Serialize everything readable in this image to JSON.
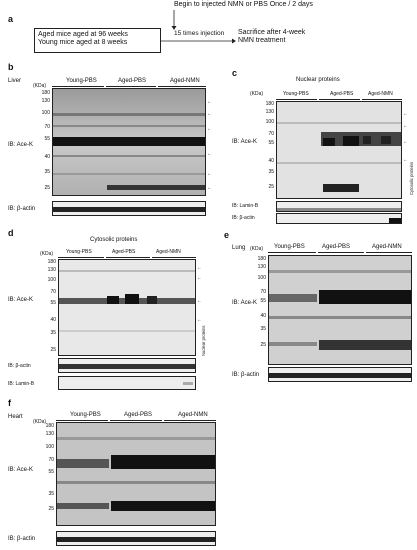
{
  "panel_a": {
    "label": "a",
    "top_text": "Begin to injected NMN or PBS Once / 2 days",
    "left_box": [
      "Aged mice aged at 96 weeks",
      "Young mice aged at 8 weeks"
    ],
    "injection": "15 times injection",
    "right_box": [
      "Sacrifice after 4-week",
      "NMN treatment"
    ]
  },
  "panel_b": {
    "label": "b",
    "tissue": "Liver",
    "groups": [
      "Young-PBS",
      "Aged-PBS",
      "Aged-NMN"
    ],
    "kda_label": "(KDa)",
    "markers": [
      "180",
      "130",
      "100",
      "70",
      "55",
      "40",
      "35",
      "25"
    ],
    "ib_main": "IB: Ace-K",
    "ib_loading": "IB: β-actin"
  },
  "panel_c": {
    "label": "c",
    "title": "Nuclear proteins",
    "groups": [
      "Young-PBS",
      "Aged-PBS",
      "Aged-NMN"
    ],
    "kda_label": "(KDa)",
    "markers": [
      "180",
      "130",
      "100",
      "70",
      "55",
      "40",
      "35",
      "25"
    ],
    "side_label": "Cytosolic proteins",
    "ib_main": "IB: Ace-K",
    "ib_lamin": "IB: Lamin-B",
    "ib_loading": "IB: β-actin"
  },
  "panel_d": {
    "label": "d",
    "title": "Cytosolic proteins",
    "groups": [
      "Young-PBS",
      "Aged-PBS",
      "Aged-NMN"
    ],
    "kda_label": "(KDa)",
    "markers": [
      "180",
      "130",
      "100",
      "70",
      "55",
      "40",
      "35",
      "25"
    ],
    "side_label": "Nuclear proteins",
    "ib_main": "IB: Ace-K",
    "ib_loading": "IB: β-actin",
    "ib_lamin": "IB: Lamin-B"
  },
  "panel_e": {
    "label": "e",
    "tissue": "Lung",
    "groups": [
      "Young-PBS",
      "Aged-PBS",
      "Aged-NMN"
    ],
    "kda_label": "(KDa)",
    "markers": [
      "180",
      "130",
      "100",
      "70",
      "55",
      "40",
      "35",
      "25"
    ],
    "ib_main": "IB: Ace-K",
    "ib_loading": "IB: β-actin"
  },
  "panel_f": {
    "label": "f",
    "tissue": "Heart",
    "groups": [
      "Young-PBS",
      "Aged-PBS",
      "Aged-NMN"
    ],
    "kda_label": "(KDa)",
    "markers": [
      "180",
      "130",
      "100",
      "70",
      "55",
      "35",
      "25"
    ],
    "ib_main": "IB: Ace-K",
    "ib_loading": "IB: β-actin"
  }
}
